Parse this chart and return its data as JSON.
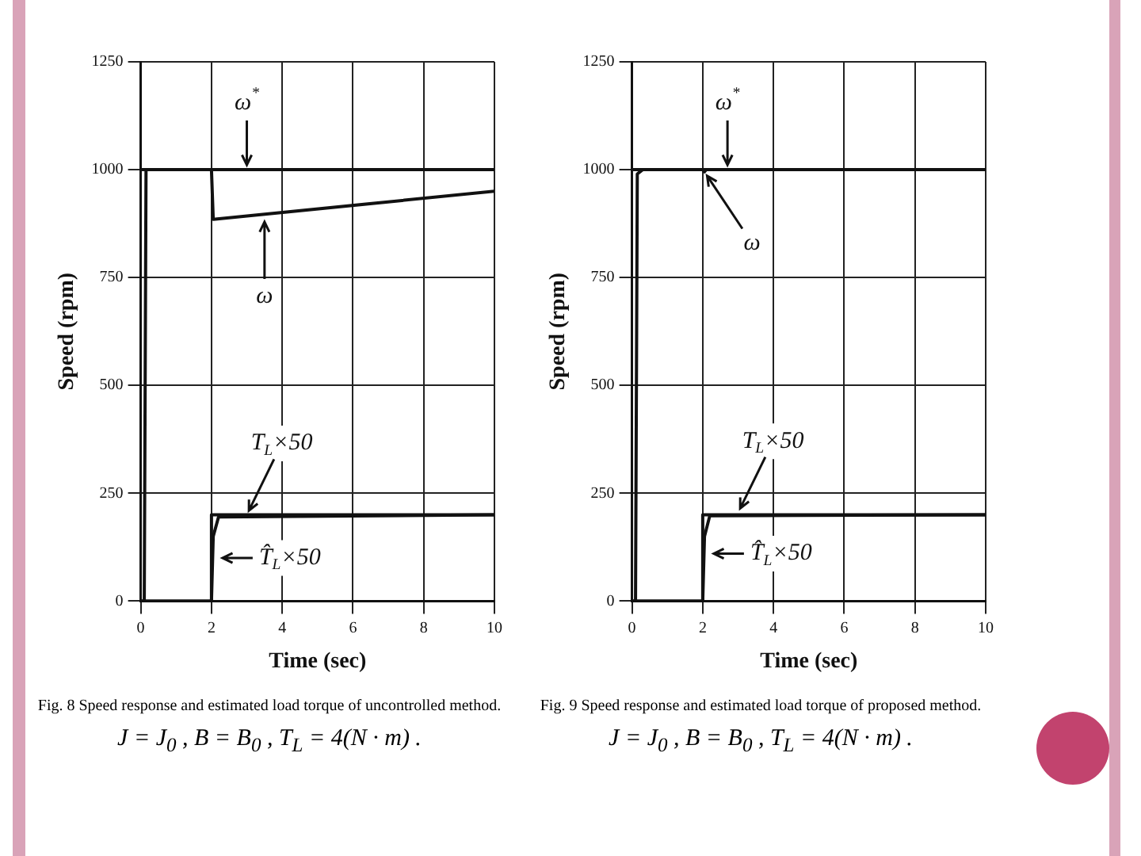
{
  "chart_data": [
    {
      "type": "line",
      "xlabel": "Time (sec)",
      "ylabel": "Speed (rpm)",
      "xlim": [
        0,
        10
      ],
      "ylim": [
        0,
        1250
      ],
      "xticks": [
        0,
        2,
        4,
        6,
        8,
        10
      ],
      "yticks": [
        0,
        250,
        500,
        750,
        1000,
        1250
      ],
      "grid": true,
      "series": [
        {
          "color": "#111111",
          "x": [
            0,
            10
          ],
          "values": [
            1000,
            1000
          ]
        },
        {
          "color": "#111111",
          "x": [
            0,
            0.1,
            0.15,
            2,
            2.05,
            10
          ],
          "values": [
            0,
            0,
            1000,
            1000,
            885,
            950
          ]
        },
        {
          "color": "#111111",
          "x": [
            0,
            2,
            2,
            10
          ],
          "values": [
            0,
            0,
            200,
            200
          ]
        },
        {
          "color": "#111111",
          "x": [
            0,
            2,
            2.05,
            2.2,
            10
          ],
          "values": [
            0,
            0,
            150,
            195,
            200
          ]
        }
      ],
      "annotations": [
        {
          "text": "ω$^{*}$",
          "x": 3,
          "y": 1000
        },
        {
          "text": "ω",
          "x": 3.5,
          "y": 890
        },
        {
          "text": "T$_{L}$×50",
          "x": 3,
          "y": 200
        },
        {
          "text": "T̂$_{L}$×50",
          "x": 2,
          "y": 100
        },
        "Fig. 8  Speed response and estimated load torque of uncontrolled method.",
        "J = J$_{0}$ , B = B$_{0}$ , T$_{L}$ = 4(N · m) ."
      ]
    },
    {
      "type": "line",
      "xlabel": "Time (sec)",
      "ylabel": "Speed (rpm)",
      "xlim": [
        0,
        10
      ],
      "ylim": [
        0,
        1250
      ],
      "xticks": [
        0,
        2,
        4,
        6,
        8,
        10
      ],
      "yticks": [
        0,
        250,
        500,
        750,
        1000,
        1250
      ],
      "grid": true,
      "series": [
        {
          "color": "#111111",
          "x": [
            0,
            10
          ],
          "values": [
            1000,
            1000
          ]
        },
        {
          "color": "#111111",
          "x": [
            0,
            0.1,
            0.15,
            0.3,
            2,
            2.05,
            2.1,
            10
          ],
          "values": [
            0,
            0,
            990,
            1000,
            1000,
            995,
            1000,
            1000
          ]
        },
        {
          "color": "#111111",
          "x": [
            0,
            2,
            2,
            10
          ],
          "values": [
            0,
            0,
            200,
            200
          ]
        },
        {
          "color": "#111111",
          "x": [
            0,
            2,
            2.05,
            2.2,
            10
          ],
          "values": [
            0,
            0,
            150,
            198,
            200
          ]
        }
      ],
      "annotations": [
        {
          "text": "ω$^{*}$",
          "x": 2.7,
          "y": 1000
        },
        {
          "text": "ω",
          "x": 2.05,
          "y": 995
        },
        {
          "text": "T$_{L}$×50",
          "x": 3,
          "y": 205
        },
        {
          "text": "T̂$_{L}$×50",
          "x": 2,
          "y": 110
        },
        "Fig. 9  Speed response and estimated load torque of proposed method.",
        "J = J$_{0}$ , B = B$_{0}$ , T$_{L}$ = 4(N · m) ."
      ]
    }
  ]
}
